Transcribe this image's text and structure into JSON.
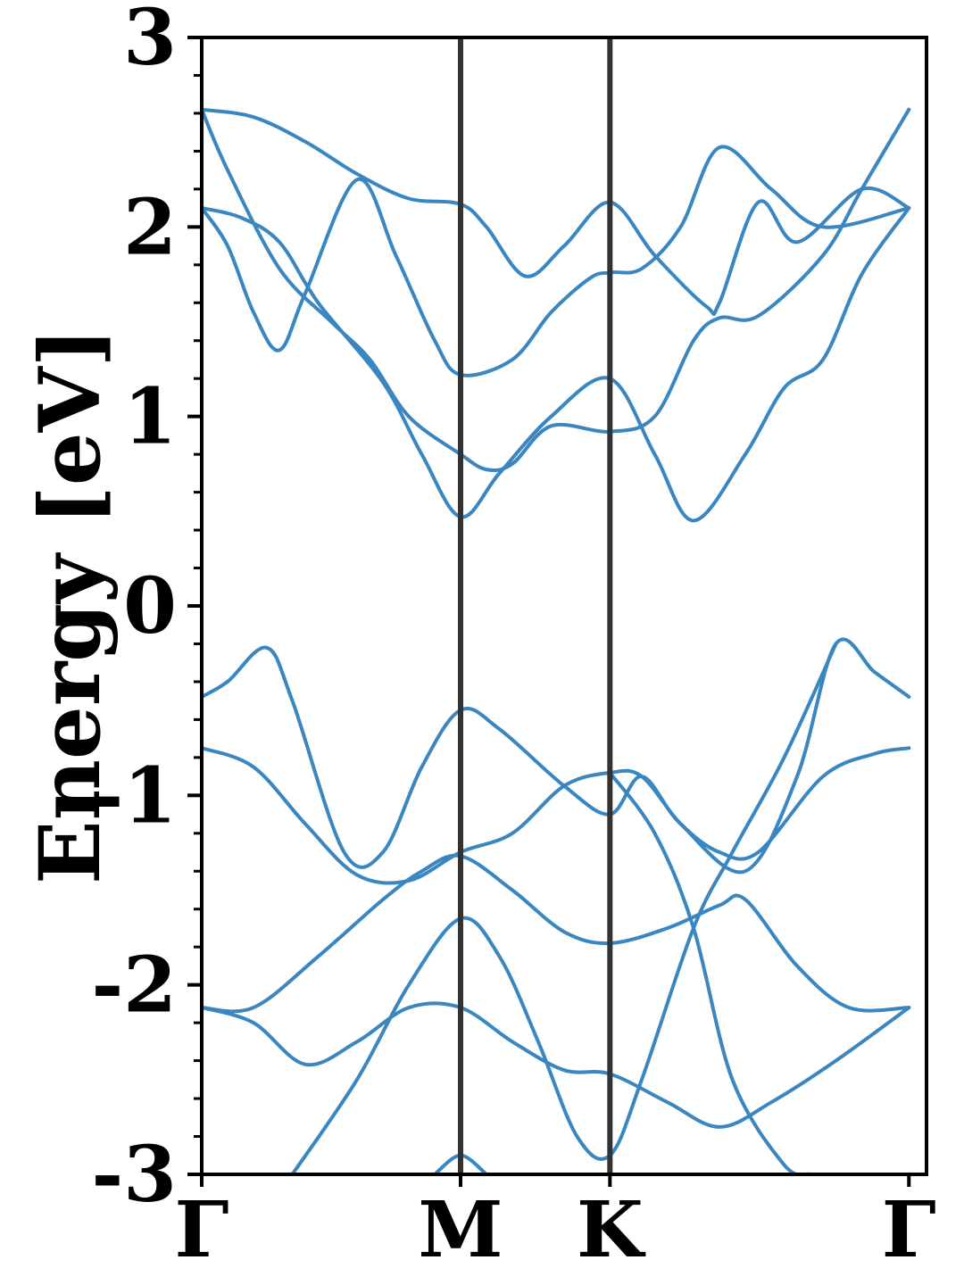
{
  "chart_data": {
    "type": "line",
    "ylabel": "Energy [eV]",
    "ylim": [
      -3,
      3
    ],
    "xlim": [
      0,
      2.8
    ],
    "y_ticks": [
      "3",
      "2",
      "1",
      "0",
      "-1",
      "-2",
      "-3"
    ],
    "y_tick_values": [
      3,
      2,
      1,
      0,
      -1,
      -2,
      -3
    ],
    "x_ticks": [
      {
        "label": "Γ",
        "x": 0.0
      },
      {
        "label": "M",
        "x": 1.0
      },
      {
        "label": "K",
        "x": 1.577
      },
      {
        "label": "Γ",
        "x": 2.732
      }
    ],
    "grid": false,
    "line_color": "#3a86c0",
    "divider_color": "#333333",
    "series": [
      {
        "points": [
          [
            0.0,
            2.62
          ],
          [
            0.2,
            2.58
          ],
          [
            0.4,
            2.45
          ],
          [
            0.6,
            2.28
          ],
          [
            0.8,
            2.15
          ],
          [
            1.0,
            2.12
          ],
          [
            1.1,
            2.0
          ],
          [
            1.25,
            1.74
          ],
          [
            1.4,
            1.9
          ],
          [
            1.577,
            2.13
          ],
          [
            1.75,
            1.85
          ],
          [
            1.95,
            1.58
          ],
          [
            2.0,
            1.6
          ],
          [
            2.15,
            2.13
          ],
          [
            2.3,
            1.92
          ],
          [
            2.55,
            2.2
          ],
          [
            2.732,
            2.1
          ]
        ]
      },
      {
        "points": [
          [
            0.0,
            2.62
          ],
          [
            0.1,
            2.3
          ],
          [
            0.3,
            1.78
          ],
          [
            0.5,
            1.5
          ],
          [
            0.65,
            1.3
          ],
          [
            0.8,
            1.0
          ],
          [
            1.0,
            0.8
          ],
          [
            1.1,
            0.72
          ],
          [
            1.2,
            0.75
          ],
          [
            1.35,
            0.95
          ],
          [
            1.577,
            0.92
          ],
          [
            1.75,
            1.0
          ],
          [
            1.9,
            1.4
          ],
          [
            2.0,
            1.52
          ],
          [
            2.15,
            1.53
          ],
          [
            2.4,
            1.85
          ],
          [
            2.55,
            2.2
          ],
          [
            2.732,
            2.62
          ]
        ]
      },
      {
        "points": [
          [
            0.0,
            2.1
          ],
          [
            0.15,
            2.05
          ],
          [
            0.3,
            1.92
          ],
          [
            0.45,
            1.6
          ],
          [
            0.7,
            1.18
          ],
          [
            0.85,
            0.8
          ],
          [
            1.0,
            0.47
          ],
          [
            1.15,
            0.7
          ],
          [
            1.35,
            1.0
          ],
          [
            1.577,
            1.2
          ],
          [
            1.75,
            0.8
          ],
          [
            1.9,
            0.45
          ],
          [
            2.1,
            0.8
          ],
          [
            2.25,
            1.15
          ],
          [
            2.4,
            1.3
          ],
          [
            2.55,
            1.75
          ],
          [
            2.732,
            2.1
          ]
        ]
      },
      {
        "points": [
          [
            0.0,
            2.1
          ],
          [
            0.1,
            1.9
          ],
          [
            0.2,
            1.55
          ],
          [
            0.3,
            1.35
          ],
          [
            0.4,
            1.65
          ],
          [
            0.6,
            2.25
          ],
          [
            0.75,
            1.85
          ],
          [
            0.9,
            1.4
          ],
          [
            1.0,
            1.22
          ],
          [
            1.2,
            1.3
          ],
          [
            1.35,
            1.55
          ],
          [
            1.5,
            1.73
          ],
          [
            1.577,
            1.76
          ],
          [
            1.7,
            1.78
          ],
          [
            1.85,
            2.0
          ],
          [
            2.0,
            2.42
          ],
          [
            2.2,
            2.2
          ],
          [
            2.4,
            2.0
          ],
          [
            2.732,
            2.1
          ]
        ]
      },
      {
        "points": [
          [
            0.0,
            -0.48
          ],
          [
            0.1,
            -0.4
          ],
          [
            0.25,
            -0.22
          ],
          [
            0.35,
            -0.5
          ],
          [
            0.55,
            -1.3
          ],
          [
            0.7,
            -1.3
          ],
          [
            0.85,
            -0.85
          ],
          [
            1.0,
            -0.55
          ],
          [
            1.15,
            -0.65
          ],
          [
            1.4,
            -0.95
          ],
          [
            1.577,
            -1.1
          ],
          [
            1.7,
            -0.9
          ],
          [
            1.85,
            -1.15
          ],
          [
            2.1,
            -1.4
          ],
          [
            2.3,
            -0.9
          ],
          [
            2.45,
            -0.2
          ],
          [
            2.6,
            -0.35
          ],
          [
            2.732,
            -0.48
          ]
        ]
      },
      {
        "points": [
          [
            0.0,
            -0.75
          ],
          [
            0.2,
            -0.85
          ],
          [
            0.4,
            -1.15
          ],
          [
            0.6,
            -1.42
          ],
          [
            0.8,
            -1.45
          ],
          [
            1.0,
            -1.3
          ],
          [
            1.2,
            -1.2
          ],
          [
            1.4,
            -0.95
          ],
          [
            1.577,
            -0.88
          ],
          [
            1.7,
            -0.9
          ],
          [
            1.85,
            -1.15
          ],
          [
            2.0,
            -1.3
          ],
          [
            2.15,
            -1.3
          ],
          [
            2.4,
            -0.9
          ],
          [
            2.6,
            -0.78
          ],
          [
            2.732,
            -0.75
          ]
        ]
      },
      {
        "points": [
          [
            0.0,
            -2.12
          ],
          [
            0.2,
            -2.12
          ],
          [
            0.45,
            -1.85
          ],
          [
            0.7,
            -1.55
          ],
          [
            0.85,
            -1.4
          ],
          [
            1.0,
            -1.32
          ],
          [
            1.2,
            -1.5
          ],
          [
            1.4,
            -1.72
          ],
          [
            1.577,
            -1.78
          ],
          [
            1.8,
            -1.7
          ],
          [
            2.0,
            -1.58
          ],
          [
            2.1,
            -1.55
          ],
          [
            2.3,
            -1.9
          ],
          [
            2.5,
            -2.12
          ],
          [
            2.732,
            -2.12
          ]
        ]
      },
      {
        "points": [
          [
            0.0,
            -2.12
          ],
          [
            0.2,
            -2.2
          ],
          [
            0.4,
            -2.42
          ],
          [
            0.6,
            -2.3
          ],
          [
            0.8,
            -2.12
          ],
          [
            1.0,
            -2.12
          ],
          [
            1.2,
            -2.3
          ],
          [
            1.4,
            -2.45
          ],
          [
            1.577,
            -2.47
          ],
          [
            1.8,
            -2.62
          ],
          [
            2.0,
            -2.75
          ],
          [
            2.2,
            -2.62
          ],
          [
            2.45,
            -2.4
          ],
          [
            2.732,
            -2.12
          ]
        ]
      },
      {
        "points": [
          [
            0.35,
            -3.0
          ],
          [
            0.6,
            -2.5
          ],
          [
            0.8,
            -2.0
          ],
          [
            1.0,
            -1.65
          ],
          [
            1.15,
            -1.85
          ],
          [
            1.3,
            -2.3
          ],
          [
            1.45,
            -2.8
          ],
          [
            1.577,
            -2.9
          ],
          [
            1.7,
            -2.5
          ],
          [
            1.9,
            -1.7
          ],
          [
            2.05,
            -1.3
          ],
          [
            2.25,
            -0.8
          ],
          [
            2.45,
            -0.2
          ]
        ]
      },
      {
        "points": [
          [
            1.577,
            -0.88
          ],
          [
            1.75,
            -1.2
          ],
          [
            1.9,
            -1.7
          ],
          [
            2.05,
            -2.5
          ],
          [
            2.25,
            -2.95
          ],
          [
            2.35,
            -3.0
          ]
        ]
      },
      {
        "points": [
          [
            0.9,
            -3.0
          ],
          [
            1.0,
            -2.9
          ],
          [
            1.1,
            -3.0
          ]
        ]
      }
    ]
  }
}
